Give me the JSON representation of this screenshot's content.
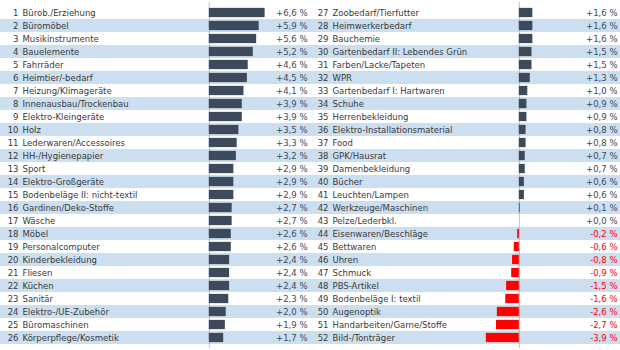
{
  "chart_data": {
    "type": "bar",
    "orientation": "horizontal",
    "categories": [
      "Bürob./Erziehung",
      "Büromöbel",
      "Musikinstrumente",
      "Bauelemente",
      "Fahrräder",
      "Heimtier/-bedarf",
      "Heizung/Klimageräte",
      "Innenausbau/Trockenbau",
      "Elektro-Kleingeräte",
      "Holz",
      "Lederwaren/Accessoires",
      "HH-/Hygienepapier",
      "Sport",
      "Elektro-Großgeräte",
      "Bodenbeläge II: nicht-textil",
      "Gardinen/Deko-Stoffe",
      "Wäsche",
      "Möbel",
      "Personalcomputer",
      "Kinderbekleidung",
      "Fliesen",
      "Küchen",
      "Sanitär",
      "Elektro-/UE-Zubehör",
      "Büromaschinen",
      "Körperpflege/Kosmetik",
      "Zoobedarf/Tierfutter",
      "Heimwerkerbedarf",
      "Bauchemie",
      "Gartenbedarf II: Lebendes Grün",
      "Farben/Lacke/Tapeten",
      "WPR",
      "Gartenbedarf I: Hartwaren",
      "Schuhe",
      "Herrenbekleidung",
      "Elektro-Installationsmaterial",
      "Food",
      "GPK/Hausrat",
      "Damenbekleidung",
      "Bücher",
      "Leuchten/Lampen",
      "Werkzeuge/Maschinen",
      "Pelze/Lederbkl.",
      "Eisenwaren/Beschläge",
      "Bettwaren",
      "Uhren",
      "Schmuck",
      "PBS-Artikel",
      "Bodenbeläge I: textil",
      "Augenoptik",
      "Handarbeiten/Garne/Stoffe",
      "Bild-/Tonträger"
    ],
    "ranks": [
      1,
      2,
      3,
      4,
      5,
      6,
      7,
      8,
      9,
      10,
      11,
      12,
      13,
      14,
      15,
      16,
      17,
      18,
      19,
      20,
      21,
      22,
      23,
      24,
      25,
      26,
      27,
      28,
      29,
      30,
      31,
      32,
      33,
      34,
      35,
      36,
      37,
      38,
      39,
      40,
      41,
      42,
      43,
      44,
      45,
      46,
      47,
      48,
      49,
      50,
      51,
      52
    ],
    "values": [
      6.6,
      5.9,
      5.6,
      5.2,
      4.6,
      4.5,
      4.1,
      3.9,
      3.9,
      3.5,
      3.3,
      3.2,
      2.9,
      2.9,
      2.9,
      2.7,
      2.7,
      2.6,
      2.6,
      2.4,
      2.4,
      2.4,
      2.3,
      2.0,
      1.9,
      1.7,
      1.6,
      1.6,
      1.6,
      1.5,
      1.5,
      1.3,
      1.0,
      0.9,
      0.9,
      0.8,
      0.8,
      0.7,
      0.7,
      0.6,
      0.6,
      0.1,
      0.0,
      -0.2,
      -0.6,
      -0.8,
      -0.9,
      -1.5,
      -1.6,
      -2.6,
      -2.7,
      -3.9
    ],
    "value_labels": [
      "+6,6 %",
      "+5,9 %",
      "+5,6 %",
      "+5,2 %",
      "+4,6 %",
      "+4,5 %",
      "+4,1 %",
      "+3,9 %",
      "+3,9 %",
      "+3,5 %",
      "+3,3 %",
      "+3,2 %",
      "+2,9 %",
      "+2,9 %",
      "+2,9 %",
      "+2,7 %",
      "+2,7 %",
      "+2,6 %",
      "+2,6 %",
      "+2,4 %",
      "+2,4 %",
      "+2,4 %",
      "+2,3 %",
      "+2,0 %",
      "+1,9 %",
      "+1,7 %",
      "+1,6 %",
      "+1,6 %",
      "+1,6 %",
      "+1,5 %",
      "+1,5 %",
      "+1,3 %",
      "+1,0 %",
      "+0,9 %",
      "+0,9 %",
      "+0,8 %",
      "+0,8 %",
      "+0,7 %",
      "+0,7 %",
      "+0,6 %",
      "+0,6 %",
      "+0,1 %",
      "+0,0 %",
      "-0,2 %",
      "-0,6 %",
      "-0,8 %",
      "-0,9 %",
      "-1,5 %",
      "-1,6 %",
      "-2,6 %",
      "-2,7 %",
      "-3,9 %"
    ],
    "colors": [
      "#3d4a5c",
      "#3d4a5c",
      "#3d4a5c",
      "#3d4a5c",
      "#3d4a5c",
      "#3d4a5c",
      "#3d4a5c",
      "#3d4a5c",
      "#3d4a5c",
      "#3d4a5c",
      "#3d4a5c",
      "#3d4a5c",
      "#3d4a5c",
      "#3d4a5c",
      "#3d4a5c",
      "#3d4a5c",
      "#3d4a5c",
      "#3d4a5c",
      "#3d4a5c",
      "#3d4a5c",
      "#3d4a5c",
      "#3d4a5c",
      "#3d4a5c",
      "#3d4a5c",
      "#3d4a5c",
      "#3d4a5c",
      "#3d4a5c",
      "#3d4a5c",
      "#3d4a5c",
      "#3d4a5c",
      "#3d4a5c",
      "#3d4a5c",
      "#3d4a5c",
      "#3d4a5c",
      "#3d4a5c",
      "#3d4a5c",
      "#3d4a5c",
      "#3d4a5c",
      "#3d4a5c",
      "#3d4a5c",
      "#3d4a5c",
      "#3d4a5c",
      "#3d4a5c",
      "#ff0000",
      "#ff0000",
      "#ff0000",
      "#ff0000",
      "#ff0000",
      "#ff0000",
      "#ff0000",
      "#ff0000",
      "#ff0000"
    ],
    "data_labels": true,
    "tick_labels": false,
    "xlim": [
      -4,
      7
    ]
  }
}
